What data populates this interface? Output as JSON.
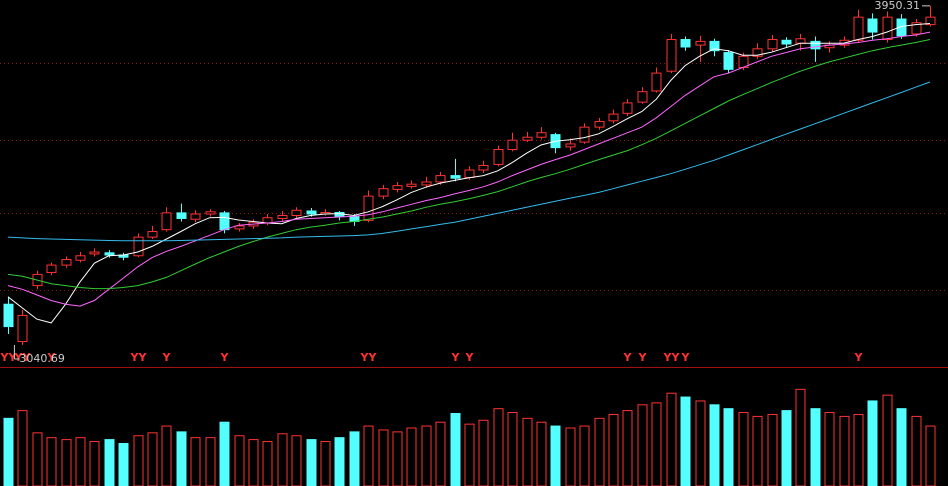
{
  "chart_data": {
    "type": "candlestick",
    "ylim": [
      2987,
      3966
    ],
    "yticks": [
      3188,
      3394,
      3590,
      3797
    ],
    "grid": true,
    "up_color": "#ff3232",
    "down_color": "#54ffff",
    "candles": [
      [
        3150,
        3170,
        3070,
        3090
      ],
      [
        3050,
        3135,
        3040.69,
        3120
      ],
      [
        3200,
        3240,
        3190,
        3230
      ],
      [
        3235,
        3262,
        3228,
        3255
      ],
      [
        3255,
        3278,
        3248,
        3270
      ],
      [
        3268,
        3290,
        3262,
        3280
      ],
      [
        3285,
        3300,
        3278,
        3290
      ],
      [
        3288,
        3295,
        3275,
        3282
      ],
      [
        3282,
        3288,
        3268,
        3276
      ],
      [
        3280,
        3340,
        3276,
        3330
      ],
      [
        3330,
        3360,
        3325,
        3345
      ],
      [
        3350,
        3410,
        3345,
        3395
      ],
      [
        3395,
        3420,
        3372,
        3380
      ],
      [
        3378,
        3402,
        3370,
        3392
      ],
      [
        3392,
        3405,
        3385,
        3398
      ],
      [
        3395,
        3400,
        3340,
        3350
      ],
      [
        3352,
        3368,
        3345,
        3360
      ],
      [
        3360,
        3378,
        3352,
        3370
      ],
      [
        3368,
        3392,
        3362,
        3382
      ],
      [
        3380,
        3400,
        3372,
        3388
      ],
      [
        3388,
        3410,
        3380,
        3402
      ],
      [
        3400,
        3408,
        3385,
        3392
      ],
      [
        3392,
        3405,
        3388,
        3396
      ],
      [
        3396,
        3400,
        3375,
        3385
      ],
      [
        3385,
        3392,
        3360,
        3372
      ],
      [
        3375,
        3455,
        3370,
        3440
      ],
      [
        3440,
        3470,
        3432,
        3460
      ],
      [
        3458,
        3478,
        3450,
        3468
      ],
      [
        3466,
        3482,
        3460,
        3472
      ],
      [
        3470,
        3492,
        3462,
        3478
      ],
      [
        3478,
        3505,
        3470,
        3495
      ],
      [
        3495,
        3540,
        3480,
        3488
      ],
      [
        3490,
        3520,
        3484,
        3510
      ],
      [
        3510,
        3535,
        3502,
        3522
      ],
      [
        3525,
        3575,
        3520,
        3565
      ],
      [
        3565,
        3610,
        3560,
        3590
      ],
      [
        3590,
        3612,
        3585,
        3598
      ],
      [
        3598,
        3625,
        3592,
        3610
      ],
      [
        3605,
        3610,
        3555,
        3570
      ],
      [
        3572,
        3595,
        3562,
        3580
      ],
      [
        3585,
        3635,
        3580,
        3625
      ],
      [
        3625,
        3650,
        3618,
        3640
      ],
      [
        3642,
        3672,
        3635,
        3660
      ],
      [
        3662,
        3700,
        3655,
        3690
      ],
      [
        3692,
        3732,
        3688,
        3720
      ],
      [
        3722,
        3785,
        3718,
        3770
      ],
      [
        3775,
        3875,
        3770,
        3860
      ],
      [
        3860,
        3868,
        3830,
        3840
      ],
      [
        3845,
        3870,
        3800,
        3855
      ],
      [
        3855,
        3862,
        3815,
        3830
      ],
      [
        3825,
        3832,
        3770,
        3780
      ],
      [
        3785,
        3825,
        3778,
        3815
      ],
      [
        3815,
        3850,
        3808,
        3835
      ],
      [
        3835,
        3872,
        3828,
        3860
      ],
      [
        3858,
        3866,
        3838,
        3848
      ],
      [
        3850,
        3875,
        3830,
        3862
      ],
      [
        3855,
        3868,
        3800,
        3835
      ],
      [
        3838,
        3855,
        3825,
        3845
      ],
      [
        3845,
        3868,
        3838,
        3858
      ],
      [
        3858,
        3940,
        3852,
        3920
      ],
      [
        3915,
        3930,
        3860,
        3880
      ],
      [
        3860,
        3935,
        3852,
        3920
      ],
      [
        3915,
        3928,
        3862,
        3870
      ],
      [
        3875,
        3915,
        3868,
        3905
      ],
      [
        3900,
        3950.31,
        3895,
        3920
      ]
    ],
    "lines": [
      {
        "color": "#ffffff",
        "values": [
          3170,
          3140,
          3110,
          3100,
          3150,
          3210,
          3260,
          3280,
          3282,
          3290,
          3305,
          3325,
          3345,
          3366,
          3382,
          3383,
          3376,
          3372,
          3368,
          3366,
          3380,
          3388,
          3392,
          3393,
          3388,
          3398,
          3412,
          3430,
          3450,
          3464,
          3475,
          3482,
          3489,
          3495,
          3508,
          3530,
          3555,
          3577,
          3587,
          3591,
          3597,
          3607,
          3627,
          3648,
          3667,
          3700,
          3750,
          3790,
          3815,
          3835,
          3830,
          3818,
          3818,
          3826,
          3838,
          3850,
          3850,
          3850,
          3850,
          3860,
          3868,
          3880,
          3895,
          3900,
          3903
        ]
      },
      {
        "color": "#ff66ff",
        "values": [
          3200,
          3190,
          3175,
          3160,
          3150,
          3145,
          3160,
          3190,
          3220,
          3250,
          3275,
          3292,
          3305,
          3320,
          3335,
          3350,
          3362,
          3365,
          3368,
          3372,
          3378,
          3380,
          3382,
          3384,
          3386,
          3390,
          3398,
          3408,
          3418,
          3428,
          3436,
          3446,
          3455,
          3465,
          3478,
          3495,
          3510,
          3525,
          3538,
          3550,
          3565,
          3580,
          3595,
          3610,
          3625,
          3650,
          3680,
          3710,
          3735,
          3760,
          3770,
          3785,
          3800,
          3815,
          3825,
          3835,
          3840,
          3845,
          3848,
          3852,
          3858,
          3862,
          3868,
          3872,
          3880
        ]
      },
      {
        "color": "#33cc33",
        "values": [
          3230,
          3225,
          3215,
          3205,
          3200,
          3195,
          3192,
          3192,
          3195,
          3200,
          3210,
          3222,
          3240,
          3258,
          3275,
          3290,
          3305,
          3318,
          3330,
          3340,
          3350,
          3357,
          3362,
          3368,
          3372,
          3378,
          3384,
          3392,
          3400,
          3410,
          3418,
          3425,
          3433,
          3442,
          3452,
          3465,
          3478,
          3490,
          3500,
          3512,
          3525,
          3538,
          3550,
          3562,
          3578,
          3595,
          3615,
          3635,
          3655,
          3675,
          3695,
          3712,
          3728,
          3745,
          3760,
          3775,
          3788,
          3800,
          3810,
          3820,
          3830,
          3838,
          3845,
          3852,
          3860
        ]
      },
      {
        "color": "#33bbee",
        "values": [
          3330,
          3328,
          3326,
          3325,
          3324,
          3323,
          3322,
          3321,
          3320,
          3320,
          3320,
          3320,
          3321,
          3322,
          3323,
          3324,
          3325,
          3326,
          3327,
          3328,
          3330,
          3331,
          3332,
          3333,
          3334,
          3336,
          3340,
          3346,
          3352,
          3358,
          3364,
          3370,
          3378,
          3386,
          3394,
          3402,
          3410,
          3418,
          3426,
          3434,
          3442,
          3450,
          3460,
          3470,
          3480,
          3490,
          3500,
          3512,
          3524,
          3536,
          3550,
          3564,
          3578,
          3592,
          3606,
          3620,
          3634,
          3648,
          3662,
          3676,
          3690,
          3704,
          3718,
          3732,
          3746
        ]
      }
    ],
    "volume": {
      "ylim": [
        0,
        120
      ],
      "values": [
        70,
        78,
        55,
        50,
        48,
        50,
        46,
        48,
        44,
        52,
        55,
        62,
        56,
        50,
        50,
        66,
        52,
        48,
        46,
        54,
        52,
        48,
        46,
        50,
        56,
        62,
        58,
        56,
        60,
        62,
        66,
        75,
        64,
        68,
        80,
        76,
        70,
        66,
        62,
        60,
        62,
        70,
        74,
        78,
        84,
        86,
        96,
        92,
        88,
        84,
        80,
        76,
        72,
        74,
        78,
        100,
        80,
        76,
        72,
        74,
        88,
        94,
        80,
        72,
        62
      ]
    },
    "signals": [
      "YY",
      "YY",
      null,
      "Y",
      null,
      null,
      null,
      null,
      null,
      "YY",
      null,
      "Y",
      null,
      null,
      null,
      "Y",
      null,
      null,
      null,
      null,
      null,
      null,
      null,
      null,
      null,
      "YY",
      null,
      null,
      null,
      null,
      null,
      "Y",
      "Y",
      null,
      null,
      null,
      null,
      null,
      null,
      null,
      null,
      null,
      null,
      "Y",
      "Y",
      null,
      "YY",
      "Y",
      null,
      null,
      null,
      null,
      null,
      null,
      null,
      null,
      null,
      null,
      null,
      "Y",
      null,
      null,
      null,
      null,
      null
    ],
    "annotations": {
      "high": 3950.31,
      "low": 3040.69
    }
  }
}
